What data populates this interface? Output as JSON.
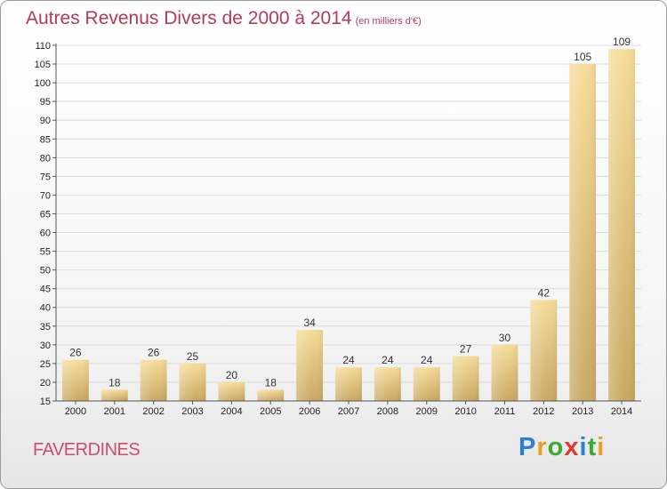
{
  "header": {
    "title": "Autres Revenus Divers de 2000 à 2014",
    "unit": "(en milliers d'€)"
  },
  "footer": {
    "commune": "FAVERDINES",
    "logo_letters": [
      "P",
      "r",
      "o",
      "x",
      "i",
      "t",
      "i"
    ],
    "logo_colors": [
      "#2c7fd6",
      "#e8a020",
      "#3aa935",
      "#e23a2e",
      "#2c7fd6",
      "#3aa935",
      "#e8a020"
    ]
  },
  "chart_data": {
    "type": "bar",
    "title": "Autres Revenus Divers de 2000 à 2014",
    "subtitle": "(en milliers d'€)",
    "xlabel": "",
    "ylabel": "",
    "categories": [
      "2000",
      "2001",
      "2002",
      "2003",
      "2004",
      "2005",
      "2006",
      "2007",
      "2008",
      "2009",
      "2010",
      "2011",
      "2012",
      "2013",
      "2014"
    ],
    "values": [
      26,
      18,
      26,
      25,
      20,
      18,
      34,
      24,
      24,
      24,
      27,
      30,
      42,
      105,
      109
    ],
    "ylim": [
      15,
      110
    ],
    "yticks": [
      15,
      20,
      25,
      30,
      35,
      40,
      45,
      50,
      55,
      60,
      65,
      70,
      75,
      80,
      85,
      90,
      95,
      100,
      105,
      110
    ],
    "grid": true,
    "bar_color_top": "#f6dc9a",
    "bar_color_bottom": "#c9a862"
  }
}
